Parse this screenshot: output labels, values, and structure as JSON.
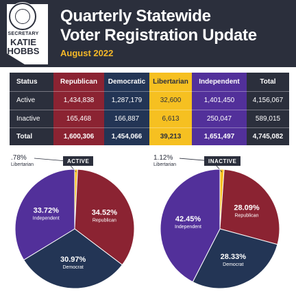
{
  "header": {
    "logo_office": "SECRETARY",
    "logo_first": "KATIE",
    "logo_last": "HOBBS",
    "title_line1": "Quarterly Statewide",
    "title_line2": "Voter Registration Update",
    "subtitle": "August 2022"
  },
  "table": {
    "headers": [
      "Status",
      "Republican",
      "Democratic",
      "Libertarian",
      "Independent",
      "Total"
    ],
    "rows": [
      [
        "Active",
        "1,434,838",
        "1,287,179",
        "32,600",
        "1,401,450",
        "4,156,067"
      ],
      [
        "Inactive",
        "165,468",
        "166,887",
        "6,613",
        "250,047",
        "589,015"
      ],
      [
        "Total",
        "1,600,306",
        "1,454,066",
        "39,213",
        "1,651,497",
        "4,745,082"
      ]
    ]
  },
  "colors": {
    "republican": "#8b2332",
    "democratic": "#233555",
    "libertarian": "#f6c021",
    "independent": "#52309a",
    "header_bg": "#2b2f3c",
    "accent": "#f6b928"
  },
  "chart_data": [
    {
      "type": "pie",
      "title": "ACTIVE",
      "slices": [
        {
          "label": "Libertarian",
          "value": 0.78,
          "value_label": ".78%",
          "color": "#f6c021"
        },
        {
          "label": "Republican",
          "value": 34.52,
          "value_label": "34.52%",
          "color": "#8b2332"
        },
        {
          "label": "Democrat",
          "value": 30.97,
          "value_label": "30.97%",
          "color": "#233555"
        },
        {
          "label": "Independent",
          "value": 33.72,
          "value_label": "33.72%",
          "color": "#52309a"
        }
      ]
    },
    {
      "type": "pie",
      "title": "INACTIVE",
      "slices": [
        {
          "label": "Libertarian",
          "value": 1.12,
          "value_label": "1.12%",
          "color": "#f6c021"
        },
        {
          "label": "Republican",
          "value": 28.09,
          "value_label": "28.09%",
          "color": "#8b2332"
        },
        {
          "label": "Democrat",
          "value": 28.33,
          "value_label": "28.33%",
          "color": "#233555"
        },
        {
          "label": "Independent",
          "value": 42.45,
          "value_label": "42.45%",
          "color": "#52309a"
        }
      ]
    }
  ]
}
